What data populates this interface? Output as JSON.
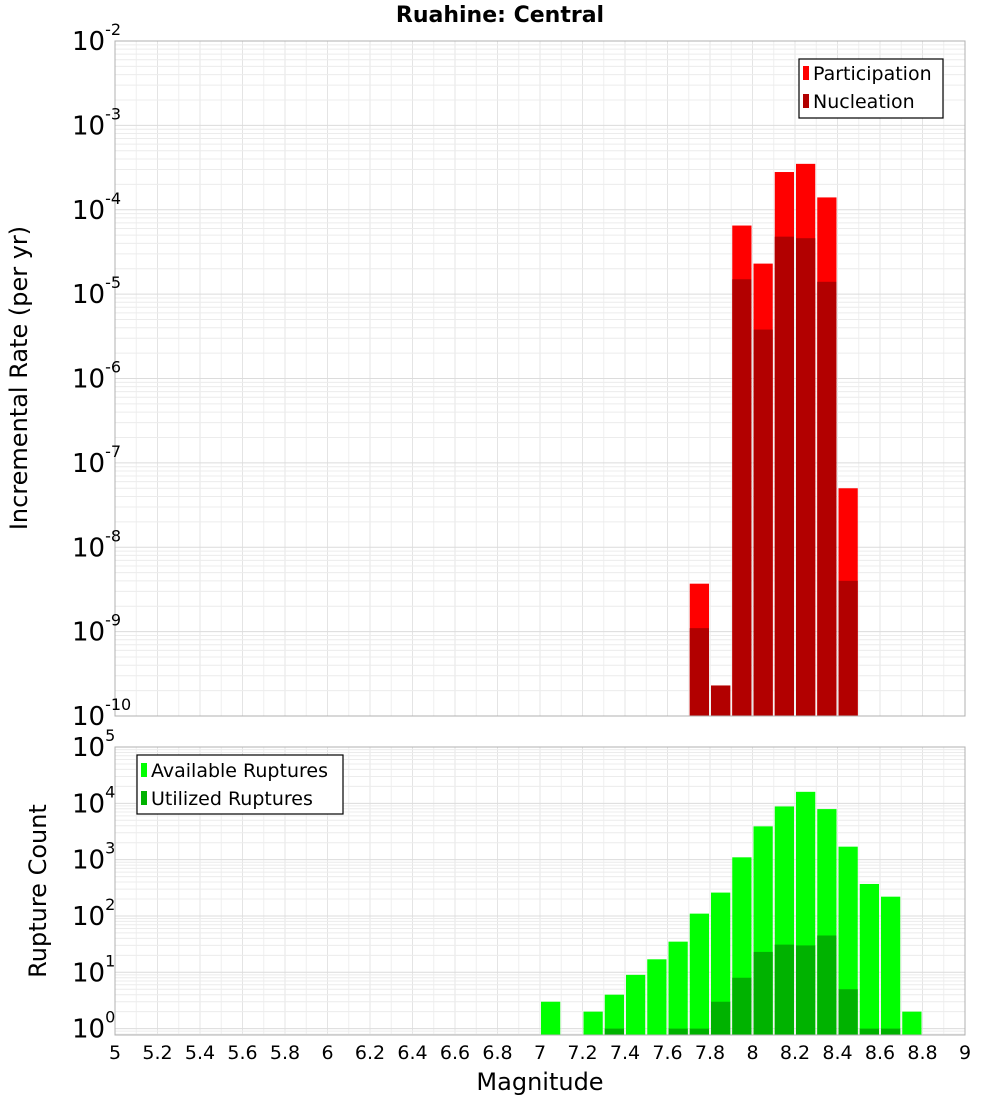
{
  "chart_data": [
    {
      "type": "bar",
      "title": "Ruahine: Central",
      "xlabel": "",
      "ylabel": "Incremental Rate (per yr)",
      "yscale": "log",
      "ylim": [
        1e-10,
        0.01
      ],
      "xlim": [
        5,
        9
      ],
      "bin_width": 0.1,
      "grid": true,
      "legend_position": "top-right",
      "x": [
        7.75,
        7.85,
        7.95,
        8.05,
        8.15,
        8.25,
        8.35,
        8.45
      ],
      "series": [
        {
          "name": "Participation",
          "color": "#ff0000",
          "values": [
            3.7e-09,
            2.3e-10,
            6.5e-05,
            2.3e-05,
            0.00028,
            0.00035,
            0.00014,
            5e-08
          ]
        },
        {
          "name": "Nucleation",
          "color": "#b20000",
          "values": [
            1.1e-09,
            2.3e-10,
            1.5e-05,
            3.8e-06,
            4.8e-05,
            4.6e-05,
            1.4e-05,
            4e-09
          ]
        }
      ]
    },
    {
      "type": "bar",
      "title": "",
      "xlabel": "Magnitude",
      "ylabel": "Rupture Count",
      "yscale": "log",
      "ylim": [
        0.77,
        100000
      ],
      "xlim": [
        5,
        9
      ],
      "bin_width": 0.1,
      "grid": true,
      "legend_position": "top-left",
      "x_ticks": [
        "5",
        "5.2",
        "5.4",
        "5.6",
        "5.8",
        "6",
        "6.2",
        "6.4",
        "6.6",
        "6.8",
        "7",
        "7.2",
        "7.4",
        "7.6",
        "7.8",
        "8",
        "8.2",
        "8.4",
        "8.6",
        "8.8",
        "9"
      ],
      "x": [
        7.05,
        7.25,
        7.35,
        7.45,
        7.55,
        7.65,
        7.75,
        7.85,
        7.95,
        8.05,
        8.15,
        8.25,
        8.35,
        8.45,
        8.55,
        8.65,
        8.75
      ],
      "series": [
        {
          "name": "Available Ruptures",
          "color": "#00ff00",
          "values": [
            3,
            2,
            4,
            9,
            17,
            35,
            110,
            260,
            1100,
            3900,
            8800,
            16000,
            7900,
            1700,
            370,
            220,
            2
          ]
        },
        {
          "name": "Utilized Ruptures",
          "color": "#00b200",
          "values": [
            null,
            null,
            1,
            null,
            null,
            1,
            1,
            3,
            8,
            23,
            31,
            30,
            45,
            5,
            1,
            1,
            null
          ]
        }
      ]
    }
  ]
}
